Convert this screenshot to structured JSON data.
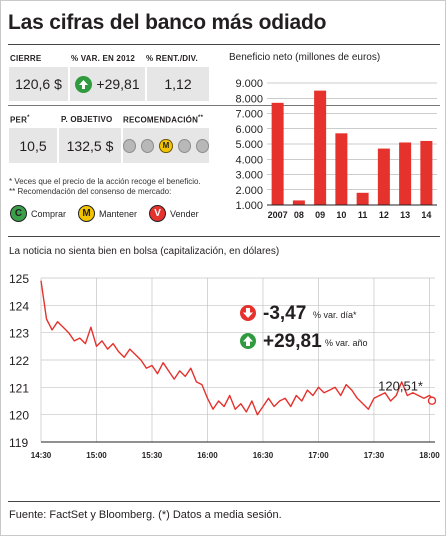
{
  "title": "Las cifras del banco más odiado",
  "stats_table": {
    "row1_headers": [
      "CIERRE",
      "% VAR. EN 2012",
      "% RENT./DIV."
    ],
    "row1_values": [
      "120,6 $",
      "+29,81",
      "1,12"
    ],
    "row2_headers": [
      "PER",
      "P. OBJETIVO",
      "RECOMENDACIÓN"
    ],
    "row2_header_marks": [
      "*",
      "**"
    ],
    "row2_values": [
      "10,5",
      "132,5 $"
    ]
  },
  "recommendation_icon_letter": "M",
  "notes": [
    "* Veces que el precio de la acción recoge el beneficio.",
    "** Recomendación del consenso de mercado:"
  ],
  "legend": {
    "items": [
      {
        "letter": "C",
        "label": "Comprar",
        "color": "#3aa04a"
      },
      {
        "letter": "M",
        "label": "Mantener",
        "color": "#f2c500"
      },
      {
        "letter": "V",
        "label": "Vender",
        "color": "#e5322d"
      }
    ]
  },
  "bar_chart_title": "Beneficio neto (millones de euros)",
  "line_chart_title": "La noticia no sienta bien en bolsa (capitalización, en dólares)",
  "callouts": {
    "day_value": "-3,47",
    "day_suffix": "% var. día*",
    "year_value": "+29,81",
    "year_suffix": "% var. año",
    "last_label": "120,51*"
  },
  "footer": "Fuente: FactSet y Bloomberg. (*) Datos a media sesión.",
  "colors": {
    "bar": "#e5322d",
    "line": "#e5322d",
    "up": "#2f9a3e",
    "down": "#e5322d"
  },
  "chart_data": [
    {
      "type": "bar",
      "categories": [
        "2007",
        "08",
        "09",
        "10",
        "11",
        "12",
        "13",
        "14"
      ],
      "values": [
        7700,
        1300,
        8500,
        5700,
        1800,
        4700,
        5100,
        5200
      ],
      "title": "Beneficio neto (millones de euros)",
      "ylim": [
        1000,
        9000
      ],
      "yticks": [
        "1.000",
        "2.000",
        "3.000",
        "4.000",
        "5.000",
        "6.000",
        "7.000",
        "8.000",
        "9.000"
      ],
      "ytick_values": [
        1000,
        2000,
        3000,
        4000,
        5000,
        6000,
        7000,
        8000,
        9000
      ]
    },
    {
      "type": "line",
      "title": "La noticia no sienta bien en bolsa (capitalización, en dólares)",
      "ylim": [
        119,
        125
      ],
      "yticks": [
        "125",
        "124",
        "123",
        "122",
        "121",
        "120",
        "119"
      ],
      "ytick_values": [
        125,
        124,
        123,
        122,
        121,
        120,
        119
      ],
      "xticks": [
        "14:30",
        "15:00",
        "15:30",
        "16:00",
        "16:30",
        "17:00",
        "17:30",
        "18:00"
      ],
      "xtick_minutes": [
        0,
        30,
        60,
        90,
        120,
        150,
        180,
        210
      ],
      "x_minutes": [
        0,
        3,
        6,
        9,
        12,
        15,
        18,
        21,
        24,
        27,
        30,
        33,
        36,
        39,
        42,
        45,
        48,
        51,
        54,
        57,
        60,
        63,
        66,
        69,
        72,
        75,
        78,
        81,
        84,
        87,
        90,
        93,
        96,
        99,
        102,
        105,
        108,
        111,
        114,
        117,
        120,
        123,
        126,
        129,
        132,
        135,
        138,
        141,
        144,
        147,
        150,
        153,
        156,
        159,
        162,
        165,
        168,
        171,
        174,
        177,
        180,
        183,
        186,
        189,
        192,
        195,
        198,
        201,
        204,
        207,
        210,
        213
      ],
      "y": [
        124.9,
        123.5,
        123.1,
        123.4,
        123.2,
        123.0,
        122.7,
        122.8,
        122.6,
        123.2,
        122.5,
        122.7,
        122.4,
        122.6,
        122.3,
        122.1,
        122.4,
        122.2,
        122.0,
        121.7,
        121.8,
        121.5,
        121.9,
        121.6,
        121.3,
        121.6,
        121.4,
        121.7,
        121.2,
        121.1,
        120.6,
        120.2,
        120.5,
        120.3,
        120.7,
        120.2,
        120.4,
        120.1,
        120.5,
        120.0,
        120.3,
        120.6,
        120.3,
        120.5,
        120.6,
        120.3,
        120.7,
        120.5,
        120.9,
        120.7,
        121.0,
        120.8,
        120.9,
        121.0,
        120.7,
        121.1,
        120.9,
        120.6,
        120.4,
        120.2,
        120.6,
        120.7,
        120.8,
        120.5,
        120.7,
        121.2,
        120.7,
        120.8,
        120.7,
        120.6,
        120.7,
        120.51
      ],
      "last_value": 120.51
    }
  ]
}
